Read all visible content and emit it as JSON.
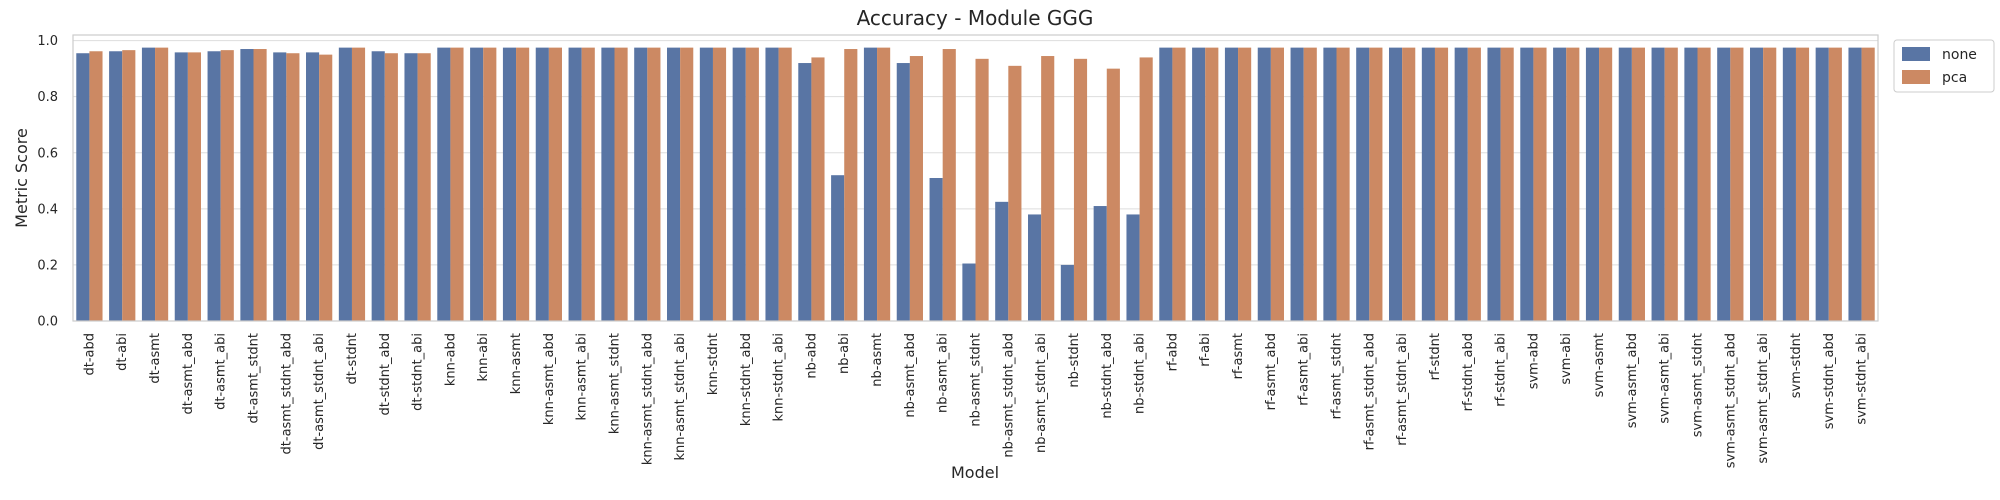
{
  "chart_data": {
    "type": "bar",
    "title": "Accuracy - Module GGG",
    "xlabel": "Model",
    "ylabel": "Metric Score",
    "ylim": [
      0,
      1.02
    ],
    "yticks": [
      "0.0",
      "0.2",
      "0.4",
      "0.6",
      "0.8",
      "1.0"
    ],
    "grid": true,
    "legend_position": "outside top-right",
    "categories": [
      "dt-abd",
      "dt-abi",
      "dt-asmt",
      "dt-asmt_abd",
      "dt-asmt_abi",
      "dt-asmt_stdnt",
      "dt-asmt_stdnt_abd",
      "dt-asmt_stdnt_abi",
      "dt-stdnt",
      "dt-stdnt_abd",
      "dt-stdnt_abi",
      "knn-abd",
      "knn-abi",
      "knn-asmt",
      "knn-asmt_abd",
      "knn-asmt_abi",
      "knn-asmt_stdnt",
      "knn-asmt_stdnt_abd",
      "knn-asmt_stdnt_abi",
      "knn-stdnt",
      "knn-stdnt_abd",
      "knn-stdnt_abi",
      "nb-abd",
      "nb-abi",
      "nb-asmt",
      "nb-asmt_abd",
      "nb-asmt_abi",
      "nb-asmt_stdnt",
      "nb-asmt_stdnt_abd",
      "nb-asmt_stdnt_abi",
      "nb-stdnt",
      "nb-stdnt_abd",
      "nb-stdnt_abi",
      "rf-abd",
      "rf-abi",
      "rf-asmt",
      "rf-asmt_abd",
      "rf-asmt_abi",
      "rf-asmt_stdnt",
      "rf-asmt_stdnt_abd",
      "rf-asmt_stdnt_abi",
      "rf-stdnt",
      "rf-stdnt_abd",
      "rf-stdnt_abi",
      "svm-abd",
      "svm-abi",
      "svm-asmt",
      "svm-asmt_abd",
      "svm-asmt_abi",
      "svm-asmt_stdnt",
      "svm-asmt_stdnt_abd",
      "svm-asmt_stdnt_abi",
      "svm-stdnt",
      "svm-stdnt_abd",
      "svm-stdnt_abi"
    ],
    "series": [
      {
        "name": "none",
        "color": "#5975a4",
        "values": [
          0.955,
          0.962,
          0.975,
          0.958,
          0.962,
          0.97,
          0.958,
          0.958,
          0.975,
          0.962,
          0.955,
          0.975,
          0.975,
          0.975,
          0.975,
          0.975,
          0.975,
          0.975,
          0.975,
          0.975,
          0.975,
          0.975,
          0.92,
          0.52,
          0.975,
          0.92,
          0.51,
          0.205,
          0.425,
          0.38,
          0.2,
          0.41,
          0.38,
          0.975,
          0.975,
          0.975,
          0.975,
          0.975,
          0.975,
          0.975,
          0.975,
          0.975,
          0.975,
          0.975,
          0.975,
          0.975,
          0.975,
          0.975,
          0.975,
          0.975,
          0.975,
          0.975,
          0.975,
          0.975,
          0.975
        ]
      },
      {
        "name": "pca",
        "color": "#cc8963",
        "values": [
          0.962,
          0.966,
          0.975,
          0.958,
          0.966,
          0.97,
          0.955,
          0.95,
          0.975,
          0.955,
          0.955,
          0.975,
          0.975,
          0.975,
          0.975,
          0.975,
          0.975,
          0.975,
          0.975,
          0.975,
          0.975,
          0.975,
          0.94,
          0.97,
          0.975,
          0.945,
          0.97,
          0.935,
          0.91,
          0.945,
          0.935,
          0.9,
          0.94,
          0.975,
          0.975,
          0.975,
          0.975,
          0.975,
          0.975,
          0.975,
          0.975,
          0.975,
          0.975,
          0.975,
          0.975,
          0.975,
          0.975,
          0.975,
          0.975,
          0.975,
          0.975,
          0.975,
          0.975,
          0.975,
          0.975
        ]
      }
    ]
  }
}
